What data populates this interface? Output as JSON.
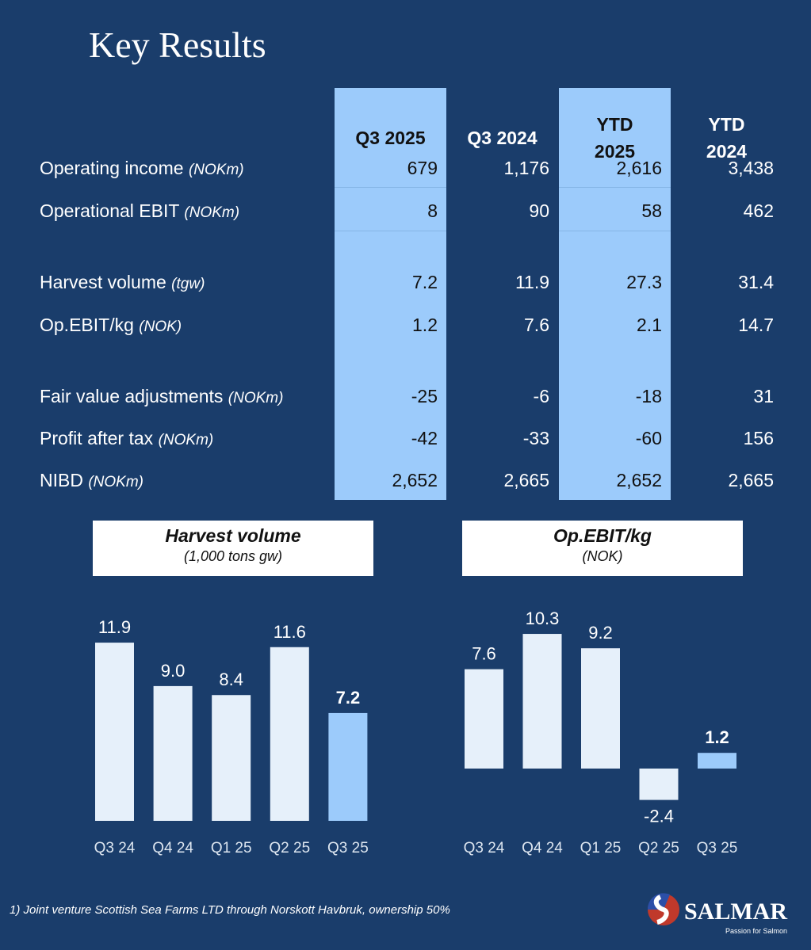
{
  "title": "Key Results",
  "columns": [
    "Q3 2025",
    "Q3 2024",
    "YTD 2025",
    "YTD 2024"
  ],
  "rows": [
    {
      "label": "Operating income",
      "unit": "(NOKm)",
      "values": [
        "679",
        "1,176",
        "2,616",
        "3,438"
      ]
    },
    {
      "label": "Operational EBIT",
      "unit": "(NOKm)",
      "values": [
        "8",
        "90",
        "58",
        "462"
      ]
    },
    {
      "label": "Harvest volume",
      "unit": "(tgw)",
      "values": [
        "7.2",
        "11.9",
        "27.3",
        "31.4"
      ]
    },
    {
      "label": "Op.EBIT/kg",
      "unit": "(NOK)",
      "values": [
        "1.2",
        "7.6",
        "2.1",
        "14.7"
      ]
    },
    {
      "label": "Fair value adjustments",
      "unit": "(NOKm)",
      "values": [
        "-25",
        "-6",
        "-18",
        "31"
      ]
    },
    {
      "label": "Profit after tax",
      "unit": "(NOKm)",
      "values": [
        "-42",
        "-33",
        "-60",
        "156"
      ]
    },
    {
      "label": "NIBD",
      "unit": "(NOKm)",
      "values": [
        "2,652",
        "2,665",
        "2,652",
        "2,665"
      ]
    }
  ],
  "colors": {
    "background": "#1a3d6b",
    "highlight": "#9ccbfb",
    "bar": "#e6f0fa"
  },
  "chart_data": [
    {
      "type": "bar",
      "title": "Harvest volume",
      "subtitle": "(1,000 tons gw)",
      "categories": [
        "Q3 24",
        "Q4 24",
        "Q1 25",
        "Q2 25",
        "Q3 25"
      ],
      "values": [
        11.9,
        9.0,
        8.4,
        11.6,
        7.2
      ],
      "labels": [
        "11.9",
        "9.0",
        "8.4",
        "11.6",
        "7.2"
      ],
      "highlight_index": 4
    },
    {
      "type": "bar",
      "title": "Op.EBIT/kg",
      "subtitle": "(NOK)",
      "categories": [
        "Q3 24",
        "Q4 24",
        "Q1 25",
        "Q2 25",
        "Q3 25"
      ],
      "values": [
        7.6,
        10.3,
        9.2,
        -2.4,
        1.2
      ],
      "labels": [
        "7.6",
        "10.3",
        "9.2",
        "-2.4",
        "1.2"
      ],
      "highlight_index": 4
    }
  ],
  "footnote": "1) Joint venture Scottish Sea Farms LTD through Norskott Havbruk, ownership 50%",
  "logo": {
    "name": "SalMar",
    "tagline": "Passion for Salmon"
  }
}
